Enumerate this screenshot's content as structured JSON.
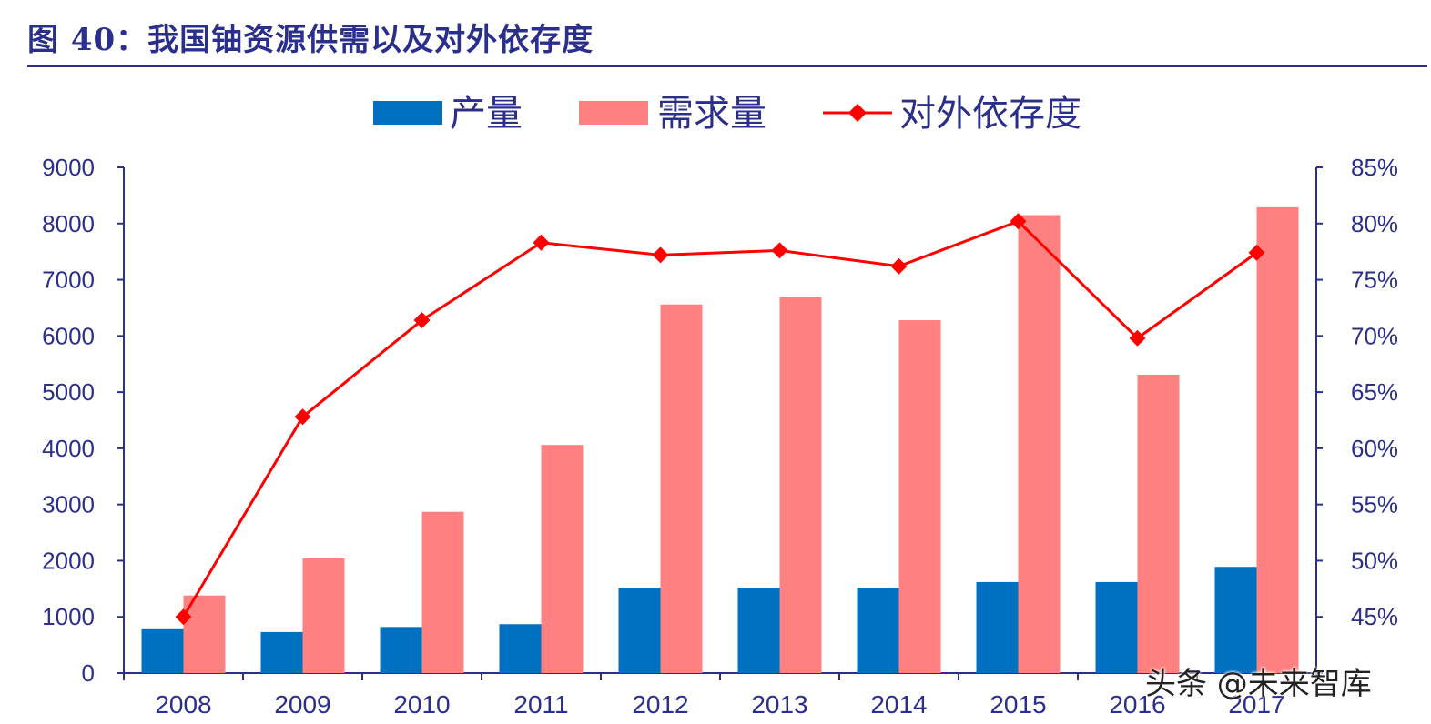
{
  "title": "图 40：我国铀资源供需以及对外依存度",
  "watermark": "头条 @未来智库",
  "colors": {
    "title": "#2b2f8c",
    "axis": "#2b2f8c",
    "production": "#0070c0",
    "demand": "#ff8080",
    "dependence": "#ff0000"
  },
  "chart_data": {
    "type": "bar",
    "categories": [
      "2008",
      "2009",
      "2010",
      "2011",
      "2012",
      "2013",
      "2014",
      "2015",
      "2016",
      "2017"
    ],
    "series": [
      {
        "name": "产量",
        "type": "bar",
        "axis": "left",
        "values": [
          780,
          730,
          820,
          870,
          1520,
          1520,
          1520,
          1620,
          1620,
          1890
        ]
      },
      {
        "name": "需求量",
        "type": "bar",
        "axis": "left",
        "values": [
          1380,
          2040,
          2870,
          4060,
          6560,
          6700,
          6280,
          8150,
          5310,
          8290
        ]
      },
      {
        "name": "对外依存度",
        "type": "line",
        "axis": "right",
        "values": [
          45.0,
          62.8,
          71.4,
          78.3,
          77.2,
          77.6,
          76.2,
          80.2,
          69.8,
          77.4
        ]
      }
    ],
    "left_axis": {
      "min": 0,
      "max": 9000,
      "step": 1000,
      "tick_labels": [
        "0",
        "1000",
        "2000",
        "3000",
        "4000",
        "5000",
        "6000",
        "7000",
        "8000",
        "9000"
      ]
    },
    "right_axis": {
      "min": 40,
      "max": 85,
      "step": 5,
      "tick_labels": [
        "45%",
        "50%",
        "55%",
        "60%",
        "65%",
        "70%",
        "75%",
        "80%",
        "85%"
      ]
    },
    "legend": {
      "position": "top-center",
      "items": [
        {
          "label": "产量",
          "kind": "box",
          "color": "#0070c0"
        },
        {
          "label": "需求量",
          "kind": "box",
          "color": "#ff8080"
        },
        {
          "label": "对外依存度",
          "kind": "line-marker",
          "color": "#ff0000"
        }
      ]
    },
    "grid": false
  }
}
